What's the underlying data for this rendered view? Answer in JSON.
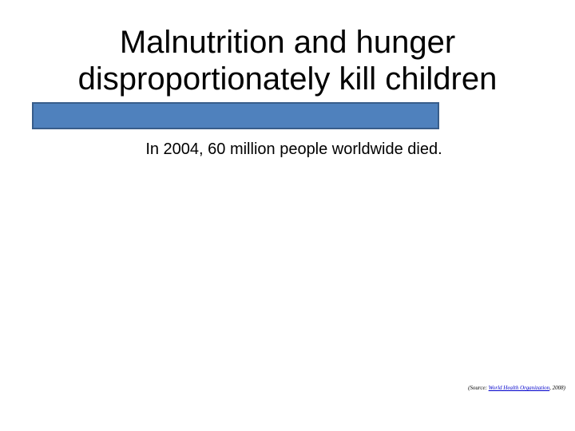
{
  "slide": {
    "title_lines": [
      "Malnutrition and hunger",
      "disproportionately kill children"
    ],
    "subtitle": "In 2004, 60 million people worldwide died.",
    "source": {
      "prefix": "(Source: ",
      "link_text": "World Health Organization",
      "suffix": ", 2008)"
    }
  },
  "colors": {
    "background": "#ffffff",
    "bar_fill": "#4f81bd",
    "bar_border": "#385d8a",
    "link": "#0000cc"
  }
}
